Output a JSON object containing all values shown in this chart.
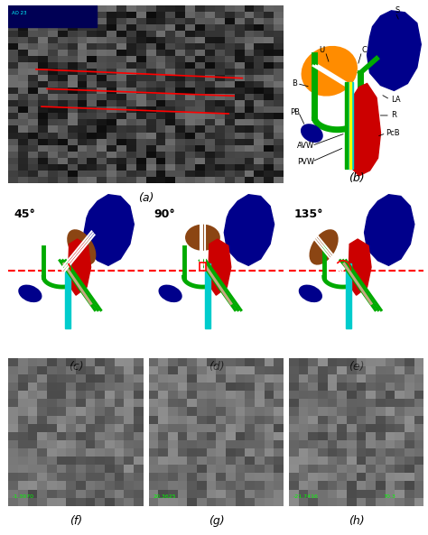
{
  "panel_labels": [
    "(a)",
    "(b)",
    "(c)",
    "(d)",
    "(e)",
    "(f)",
    "(g)",
    "(h)"
  ],
  "angles": [
    "45°",
    "90°",
    "135°"
  ],
  "green_values": [
    "-1.3970",
    "20.3625",
    "-21.7416",
    "70.3"
  ],
  "bg_color": "#ffffff",
  "mri_bg": "#080808",
  "colors": {
    "dark_blue": "#00008B",
    "orange": "#FF8C00",
    "red": "#CC0000",
    "green": "#00aa00",
    "cyan": "#00CCCC",
    "yellow": "#FFFF00",
    "brown": "#8B4513",
    "tan": "#C4A882",
    "dashed_red": "#FF0000",
    "white": "#FFFFFF"
  }
}
